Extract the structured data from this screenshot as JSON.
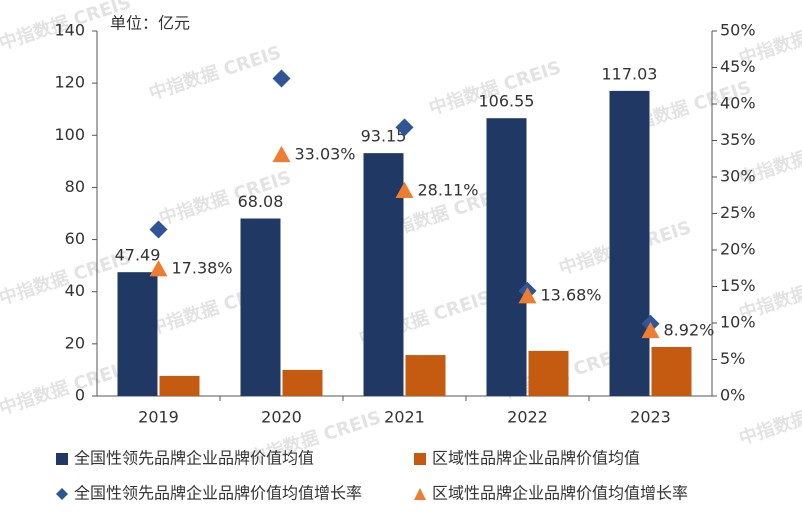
{
  "chart_data": {
    "type": "bar",
    "unit_label": "单位：亿元",
    "watermark": "中指数据 CREIS",
    "categories": [
      "2019",
      "2020",
      "2021",
      "2022",
      "2023"
    ],
    "series": [
      {
        "name": "全国性领先品牌企业品牌价值均值",
        "type": "bar",
        "color": "#1f3864",
        "values": [
          47.49,
          68.08,
          93.15,
          106.55,
          117.03
        ],
        "show_labels": true
      },
      {
        "name": "区域性品牌企业品牌价值均值",
        "type": "bar",
        "color": "#c55a11",
        "values": [
          7.7,
          10.0,
          15.7,
          17.3,
          18.8
        ],
        "show_labels": false
      },
      {
        "name": "全国性领先品牌企业品牌价值均值增长率",
        "type": "scatter",
        "marker": "diamond",
        "axis": "y2",
        "color": "#2f5597",
        "values": [
          22.8,
          43.5,
          36.8,
          14.4,
          9.9
        ],
        "show_labels": false
      },
      {
        "name": "区域性品牌企业品牌价值均值增长率",
        "type": "scatter",
        "marker": "triangle",
        "axis": "y2",
        "color": "#ed7d31",
        "values": [
          17.38,
          33.03,
          28.11,
          13.68,
          8.92
        ],
        "value_labels": [
          "17.38%",
          "33.03%",
          "28.11%",
          "13.68%",
          "8.92%"
        ],
        "show_labels": true
      }
    ],
    "ylim": [
      0,
      140
    ],
    "yticks": [
      0,
      20,
      40,
      60,
      80,
      100,
      120,
      140
    ],
    "y2lim": [
      0,
      50
    ],
    "y2ticks": [
      {
        "value": 0,
        "label": "0%"
      },
      {
        "value": 5,
        "label": "5%"
      },
      {
        "value": 10,
        "label": "10%"
      },
      {
        "value": 15,
        "label": "15%"
      },
      {
        "value": 20,
        "label": "20%"
      },
      {
        "value": 25,
        "label": "25%"
      },
      {
        "value": 30,
        "label": "30%"
      },
      {
        "value": 35,
        "label": "35%"
      },
      {
        "value": 40,
        "label": "40%"
      },
      {
        "value": 45,
        "label": "45%"
      },
      {
        "value": 50,
        "label": "50%"
      }
    ],
    "legend": "bottom"
  }
}
